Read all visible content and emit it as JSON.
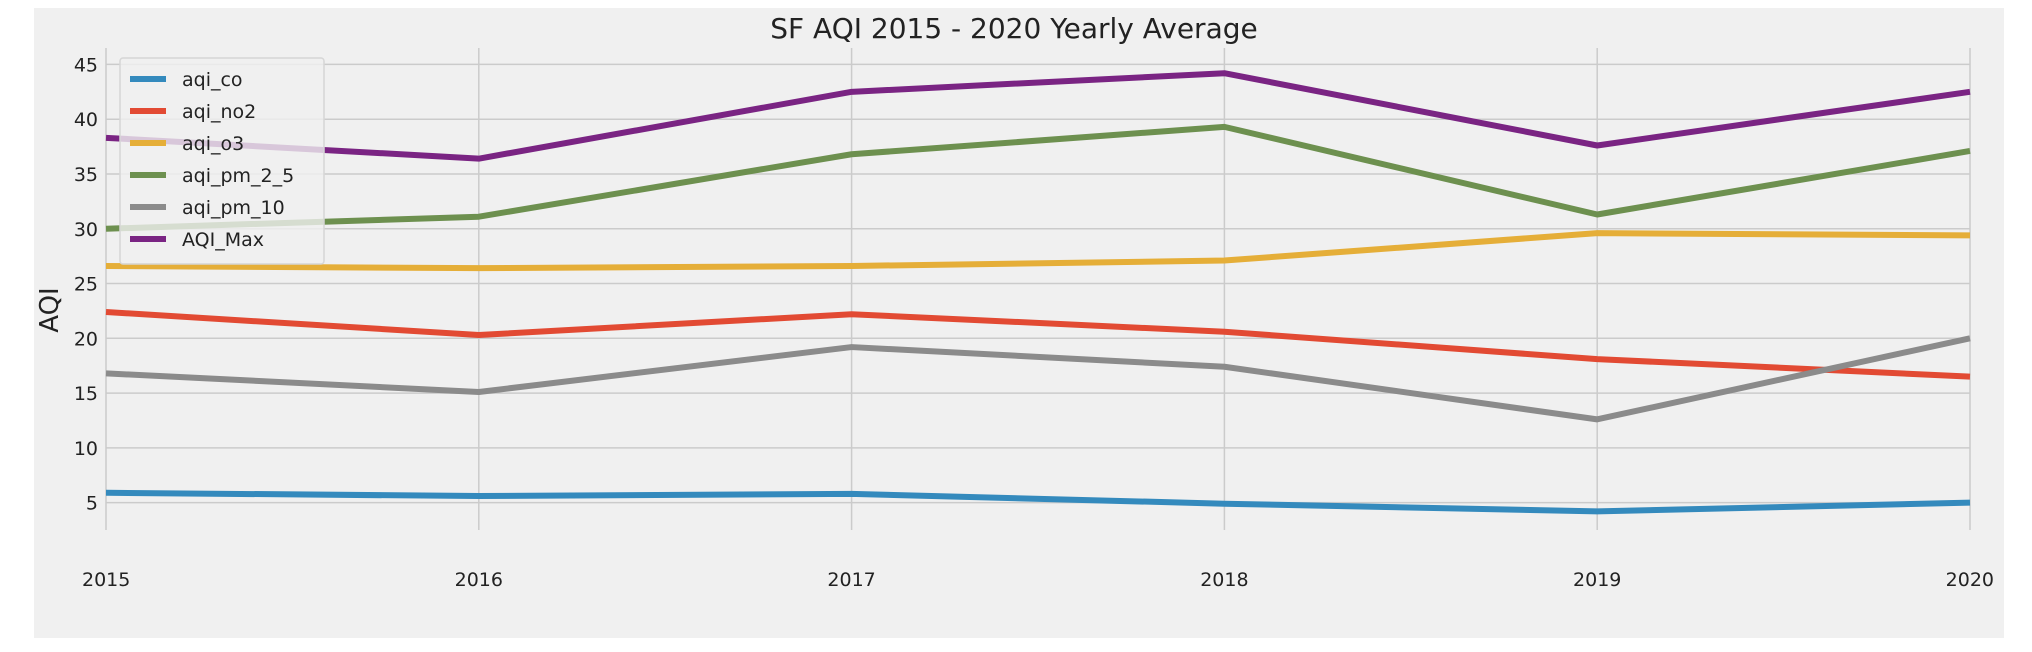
{
  "chart_data": {
    "type": "line",
    "title": "SF AQI 2015 - 2020 Yearly Average",
    "xlabel": "",
    "ylabel": "AQI",
    "x": [
      "2015",
      "2016",
      "2017",
      "2018",
      "2019",
      "2020"
    ],
    "xlim": [
      2015,
      2020
    ],
    "ylim": [
      2.5,
      46.5
    ],
    "yticks": [
      5,
      10,
      15,
      20,
      25,
      30,
      35,
      40,
      45
    ],
    "grid": true,
    "legend": "top-left",
    "series": [
      {
        "name": "aqi_co",
        "color": "#348ABD",
        "values": [
          5.9,
          5.6,
          5.8,
          4.9,
          4.2,
          5.0
        ]
      },
      {
        "name": "aqi_no2",
        "color": "#E24A33",
        "values": [
          22.4,
          20.3,
          22.2,
          20.6,
          18.1,
          16.5
        ]
      },
      {
        "name": "aqi_o3",
        "color": "#E5AE38",
        "values": [
          26.6,
          26.4,
          26.6,
          27.1,
          29.6,
          29.4
        ]
      },
      {
        "name": "aqi_pm_2_5",
        "color": "#6D904F",
        "values": [
          30.0,
          31.1,
          36.8,
          39.3,
          31.3,
          37.1
        ]
      },
      {
        "name": "aqi_pm_10",
        "color": "#8B8B8B",
        "values": [
          16.8,
          15.1,
          19.2,
          17.4,
          12.6,
          20.0
        ]
      },
      {
        "name": "AQI_Max",
        "color": "#7A2483",
        "values": [
          38.3,
          36.4,
          42.5,
          44.2,
          37.6,
          42.5
        ]
      }
    ]
  }
}
